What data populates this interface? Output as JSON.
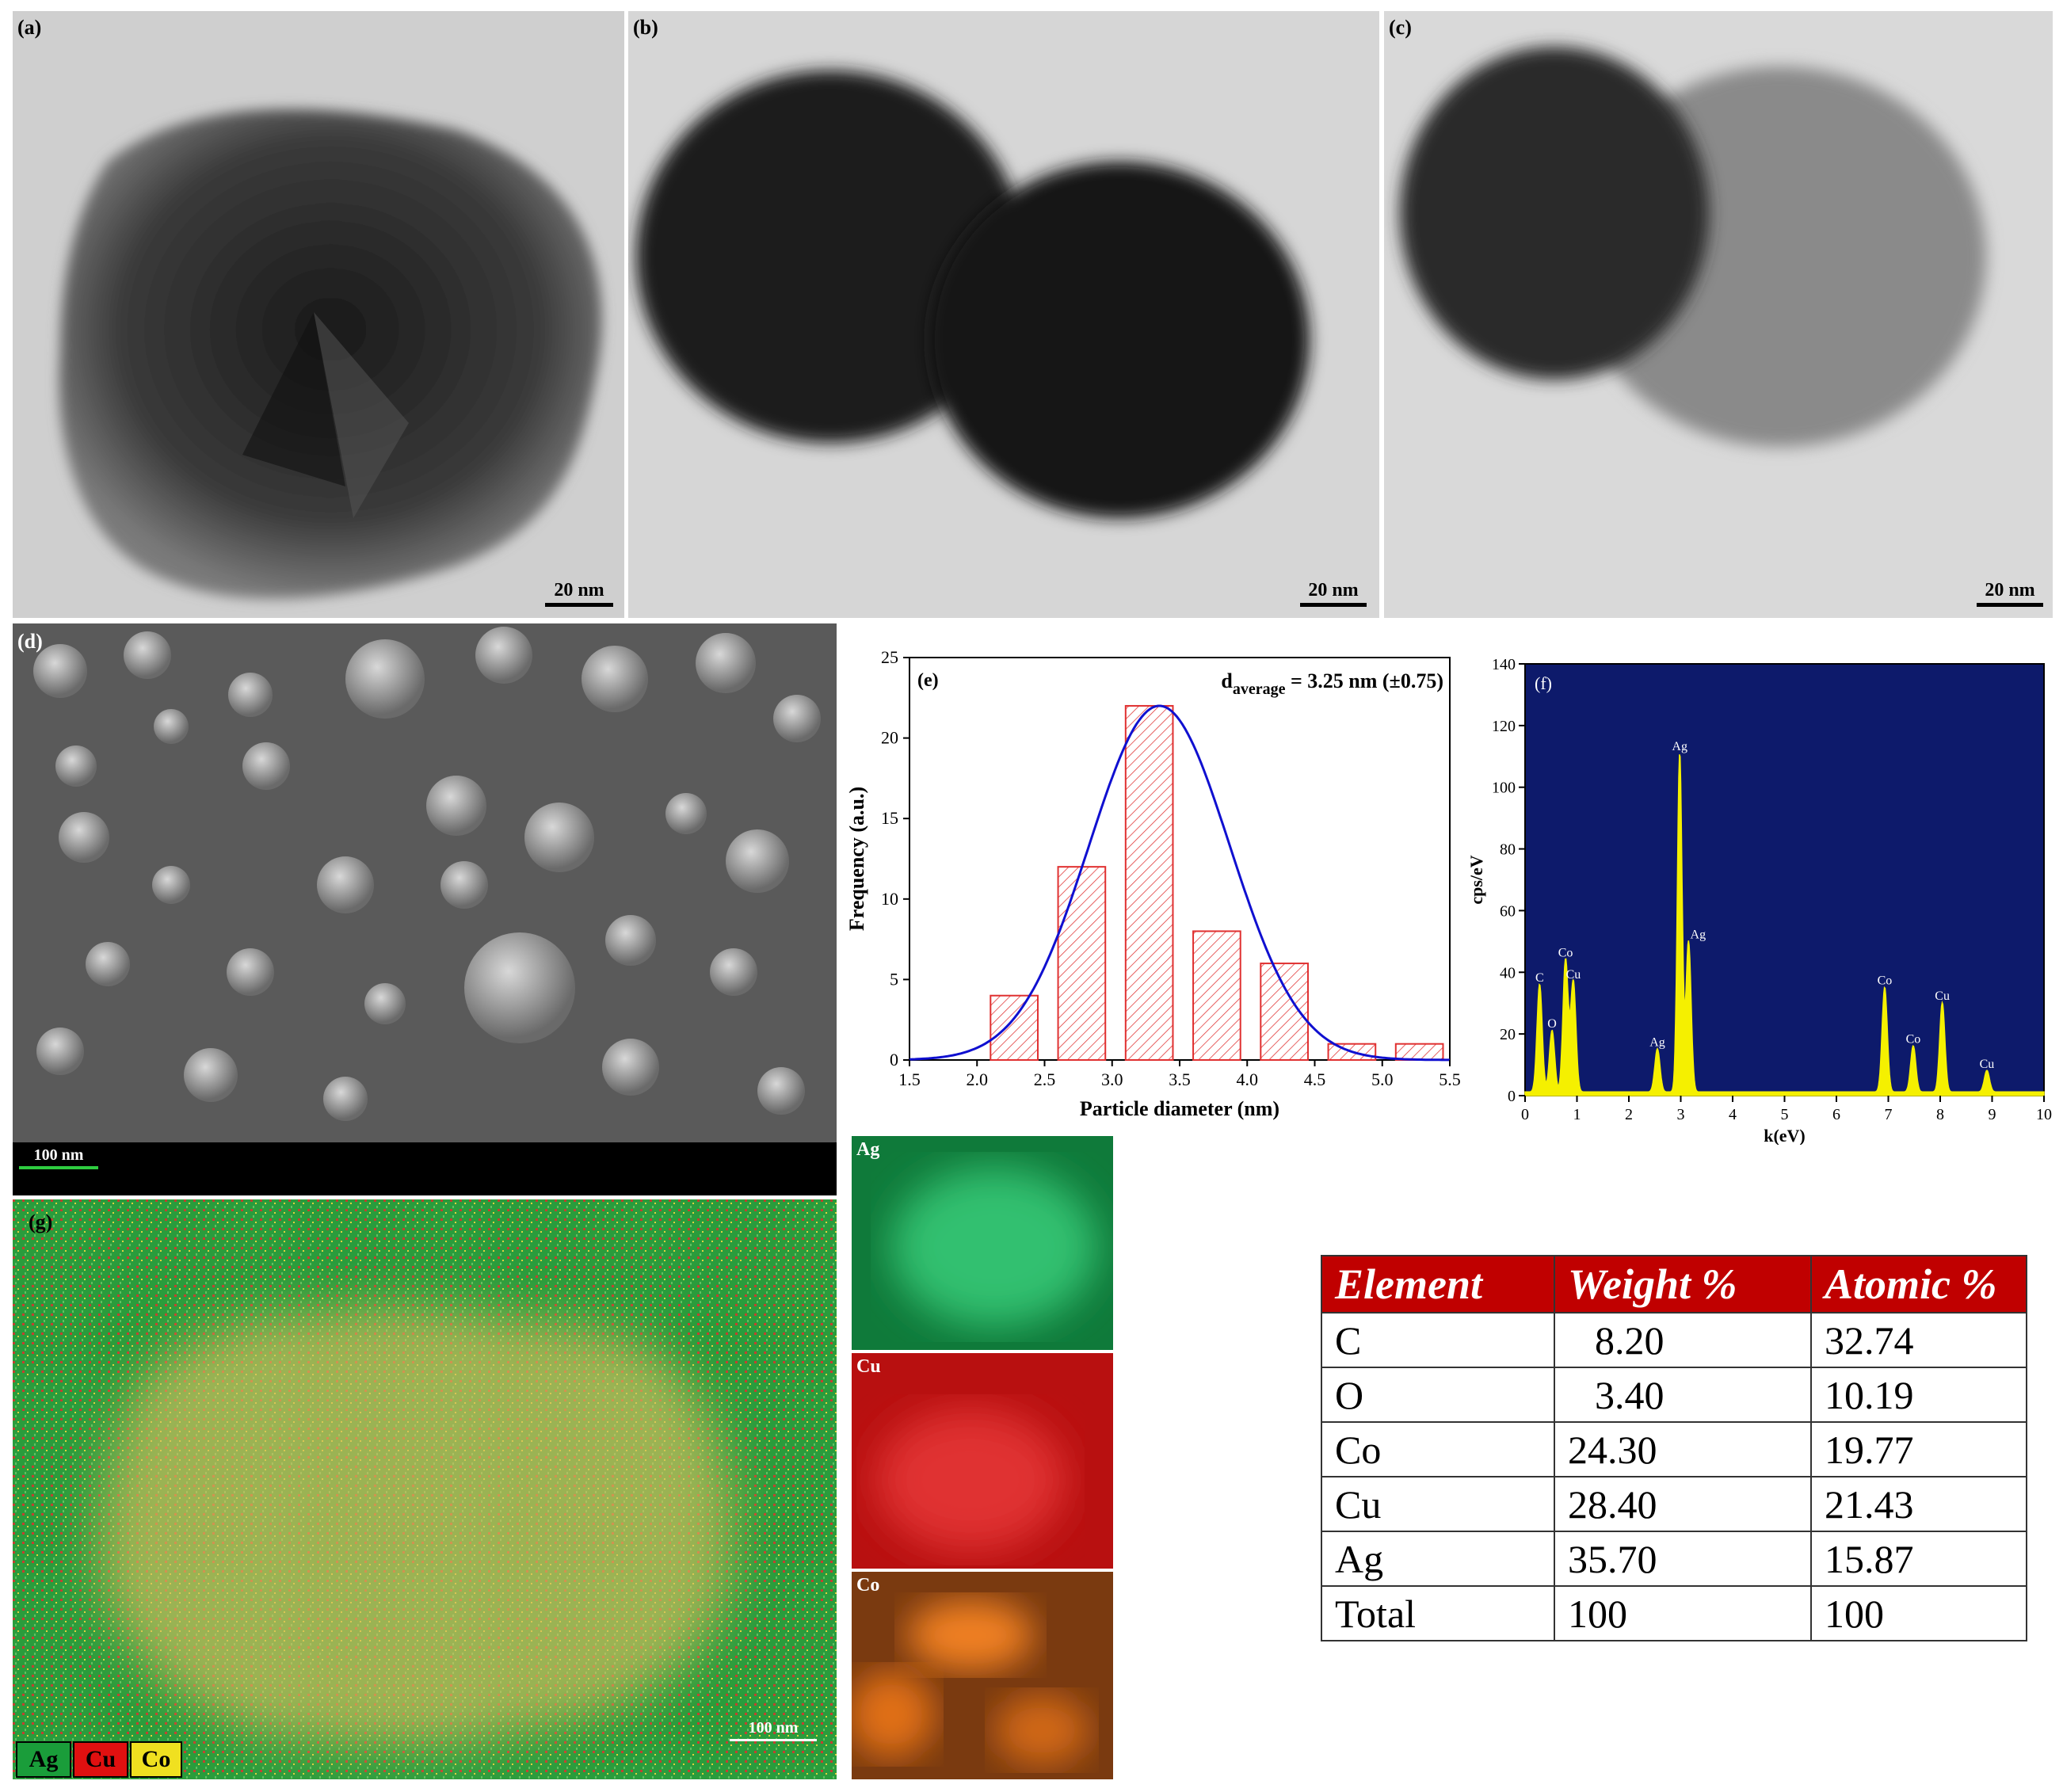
{
  "panels": {
    "a": {
      "label": "(a)",
      "scale": "20 nm"
    },
    "b": {
      "label": "(b)",
      "scale": "20 nm"
    },
    "c": {
      "label": "(c)",
      "scale": "20 nm"
    },
    "d": {
      "label": "(d)",
      "scale": "100 nm"
    },
    "g": {
      "label": "(g)",
      "scale": "100 nm"
    },
    "ag_map": {
      "label": "Ag"
    },
    "cu_map": {
      "label": "Cu"
    },
    "co_map": {
      "label": "Co"
    }
  },
  "map_legend": [
    {
      "label": "Ag",
      "color": "#1a9d3a"
    },
    {
      "label": "Cu",
      "color": "#e01010"
    },
    {
      "label": "Co",
      "color": "#f0e020"
    }
  ],
  "table": {
    "headers": [
      "Element",
      "Weight %",
      "Atomic %"
    ],
    "rows": [
      [
        "C",
        "8.20",
        "32.74"
      ],
      [
        "O",
        "3.40",
        "10.19"
      ],
      [
        "Co",
        "24.30",
        "19.77"
      ],
      [
        "Cu",
        "28.40",
        "21.43"
      ],
      [
        "Ag",
        "35.70",
        "15.87"
      ],
      [
        "Total",
        "100",
        "100"
      ]
    ]
  },
  "chart_data": [
    {
      "type": "bar",
      "panel_label": "(e)",
      "annotation_main": "d",
      "annotation_sub": "average",
      "annotation_rest": " = 3.25 nm (±0.75)",
      "xlabel": "Particle diameter (nm)",
      "ylabel": "Frequency (a.u.)",
      "xlim": [
        1.5,
        5.5
      ],
      "ylim": [
        0,
        25
      ],
      "xticks": [
        "1.5",
        "2.0",
        "2.5",
        "3.0",
        "3.5",
        "4.0",
        "4.5",
        "5.0",
        "5.5"
      ],
      "yticks": [
        "0",
        "5",
        "10",
        "15",
        "20",
        "25"
      ],
      "bins": [
        {
          "x0": 2.1,
          "x1": 2.45,
          "value": 4
        },
        {
          "x0": 2.6,
          "x1": 2.95,
          "value": 12
        },
        {
          "x0": 3.1,
          "x1": 3.45,
          "value": 22
        },
        {
          "x0": 3.6,
          "x1": 3.95,
          "value": 8
        },
        {
          "x0": 4.1,
          "x1": 4.45,
          "value": 6
        },
        {
          "x0": 4.6,
          "x1": 4.95,
          "value": 1
        },
        {
          "x0": 5.1,
          "x1": 5.45,
          "value": 1
        }
      ],
      "fit": {
        "type": "gaussian",
        "peak_x": 3.35,
        "peak_y": 22,
        "sigma": 0.52,
        "color": "#1010d0"
      },
      "bar_color": "#e03030"
    },
    {
      "type": "line",
      "panel_label": "(f)",
      "xlabel": "k(eV)",
      "ylabel": "cps/eV",
      "xlim": [
        0,
        10
      ],
      "ylim": [
        0,
        140
      ],
      "xticks": [
        "0",
        "1",
        "2",
        "3",
        "4",
        "5",
        "6",
        "7",
        "8",
        "9",
        "10"
      ],
      "yticks": [
        "0",
        "20",
        "40",
        "60",
        "80",
        "100",
        "120",
        "140"
      ],
      "background": "#0d1a6b",
      "line_color": "#f5f000",
      "peaks": [
        {
          "x": 0.28,
          "y": 35,
          "label": "C"
        },
        {
          "x": 0.52,
          "y": 20,
          "label": "O"
        },
        {
          "x": 0.78,
          "y": 43,
          "label": "Co"
        },
        {
          "x": 0.93,
          "y": 36,
          "label": "Cu"
        },
        {
          "x": 2.55,
          "y": 14,
          "label": "Ag"
        },
        {
          "x": 2.98,
          "y": 110,
          "label": "Ag"
        },
        {
          "x": 3.15,
          "y": 49,
          "label": "Ag"
        },
        {
          "x": 6.93,
          "y": 34,
          "label": "Co"
        },
        {
          "x": 7.48,
          "y": 15,
          "label": "Co"
        },
        {
          "x": 8.04,
          "y": 29,
          "label": "Cu"
        },
        {
          "x": 8.9,
          "y": 7,
          "label": "Cu"
        }
      ]
    }
  ]
}
